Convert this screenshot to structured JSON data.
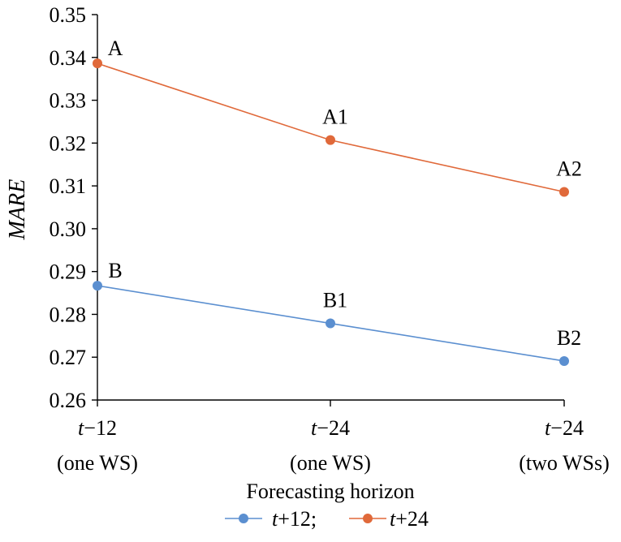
{
  "chart_data": {
    "type": "line",
    "title": "",
    "xlabel": "Forecasting horizon",
    "ylabel": "MARE",
    "ylim": [
      0.26,
      0.35
    ],
    "yticks": [
      "0.26",
      "0.27",
      "0.28",
      "0.29",
      "0.30",
      "0.31",
      "0.32",
      "0.33",
      "0.34",
      "0.35"
    ],
    "categories": [
      {
        "main_prefix": "t",
        "main_suffix": "−12",
        "sub": "(one WS)"
      },
      {
        "main_prefix": "t",
        "main_suffix": "−24",
        "sub": "(one WS)"
      },
      {
        "main_prefix": "t",
        "main_suffix": "−24",
        "sub": "(two WSs)"
      }
    ],
    "series": [
      {
        "name": "t+12;",
        "name_prefix": "t",
        "name_suffix": "+12;",
        "color": "#5b8fd0",
        "values": [
          0.2867,
          0.2779,
          0.2691
        ],
        "point_labels": [
          "B",
          "B1",
          "B2"
        ]
      },
      {
        "name": "t+24",
        "name_prefix": "t",
        "name_suffix": "+24",
        "color": "#e0693a",
        "values": [
          0.3386,
          0.3207,
          0.3086
        ],
        "point_labels": [
          "A",
          "A1",
          "A2"
        ]
      }
    ],
    "legend_position": "bottom-center",
    "grid": false
  }
}
